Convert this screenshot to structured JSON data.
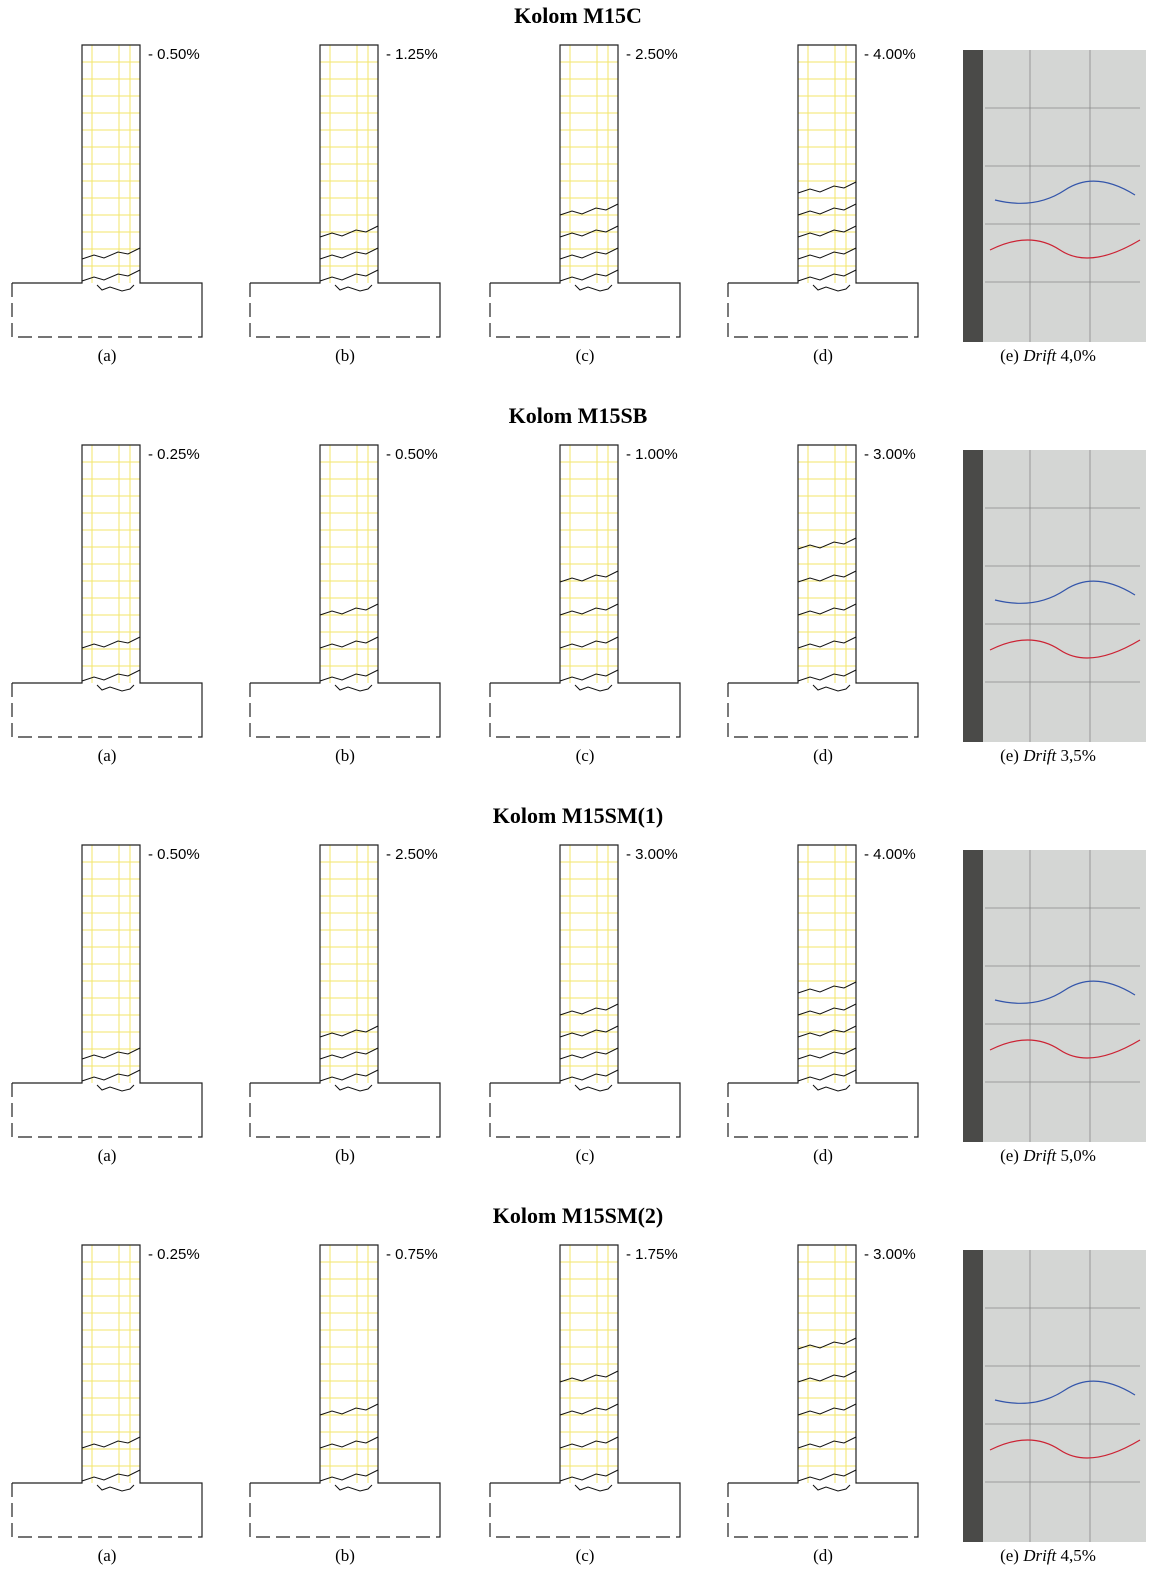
{
  "sections": [
    {
      "title": "Kolom M15C",
      "panels": [
        {
          "drift": "- 0.50%",
          "caption": "(a)"
        },
        {
          "drift": "- 1.25%",
          "caption": "(b)"
        },
        {
          "drift": "- 2.50%",
          "caption": "(c)"
        },
        {
          "drift": "- 4.00%",
          "caption": "(d)"
        }
      ],
      "photo_caption": {
        "prefix": "(e)",
        "italic": "Drift",
        "value": "4,0%"
      }
    },
    {
      "title": "Kolom M15SB",
      "panels": [
        {
          "drift": "- 0.25%",
          "caption": "(a)"
        },
        {
          "drift": "- 0.50%",
          "caption": "(b)"
        },
        {
          "drift": "- 1.00%",
          "caption": "(c)"
        },
        {
          "drift": "- 3.00%",
          "caption": "(d)"
        }
      ],
      "photo_caption": {
        "prefix": "(e)",
        "italic": "Drift",
        "value": "3,5%"
      }
    },
    {
      "title": "Kolom M15SM(1)",
      "panels": [
        {
          "drift": "- 0.50%",
          "caption": "(a)"
        },
        {
          "drift": "- 2.50%",
          "caption": "(b)"
        },
        {
          "drift": "- 3.00%",
          "caption": "(c)"
        },
        {
          "drift": "- 4.00%",
          "caption": "(d)"
        }
      ],
      "photo_caption": {
        "prefix": "(e)",
        "italic": "Drift",
        "value": "5,0%"
      }
    },
    {
      "title": "Kolom M15SM(2)",
      "panels": [
        {
          "drift": "- 0.25%",
          "caption": "(a)"
        },
        {
          "drift": "- 0.75%",
          "caption": "(b)"
        },
        {
          "drift": "- 1.75%",
          "caption": "(c)"
        },
        {
          "drift": "- 3.00%",
          "caption": "(d)"
        }
      ],
      "photo_caption": {
        "prefix": "(e)",
        "italic": "Drift",
        "value": "4,5%"
      }
    }
  ]
}
